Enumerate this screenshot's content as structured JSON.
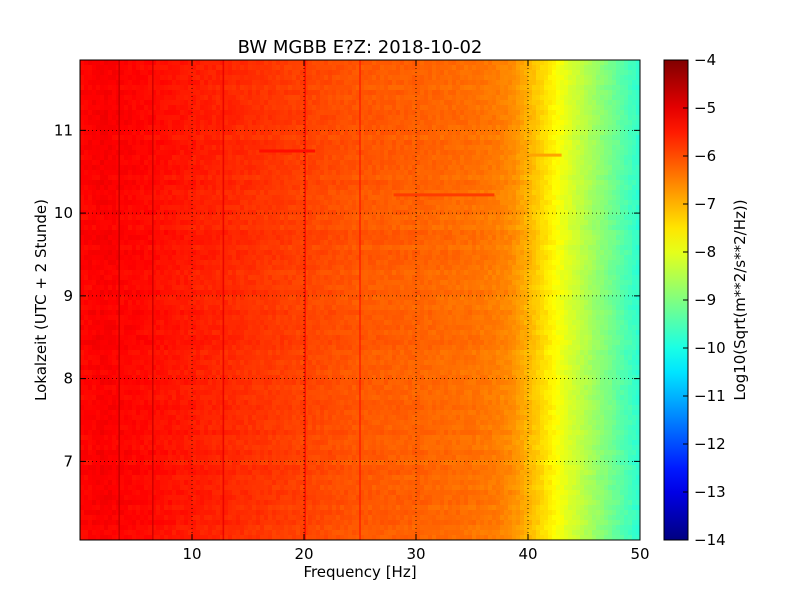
{
  "chart_data": {
    "type": "heatmap",
    "title": "BW MGBB E?Z: 2018-10-02",
    "xlabel": "Frequency [Hz]",
    "ylabel": "Lokalzeit (UTC + 2 Stunde)",
    "xlim": [
      0,
      50
    ],
    "ylim": [
      11.85,
      6.05
    ],
    "y_inverted": true,
    "x_ticks": [
      10,
      20,
      30,
      40,
      50
    ],
    "y_ticks": [
      7,
      8,
      9,
      10,
      11
    ],
    "grid": true,
    "colormap": "jet",
    "colorbar": {
      "label": "Log10(Sqrt(m**2/s**2/Hz))",
      "range": [
        -14,
        -4
      ],
      "ticks": [
        -4,
        -5,
        -6,
        -7,
        -8,
        -9,
        -10,
        -11,
        -12,
        -13,
        -14
      ]
    },
    "spectrum_profile": {
      "frequency_hz": [
        0,
        2,
        5,
        10,
        15,
        20,
        25,
        30,
        35,
        37,
        38.5,
        40,
        41.5,
        42.5,
        43.5,
        45,
        47,
        49,
        50
      ],
      "log10_psd": [
        -5.3,
        -5.2,
        -5.3,
        -5.5,
        -5.7,
        -5.9,
        -6.1,
        -6.2,
        -6.35,
        -6.45,
        -6.6,
        -7.0,
        -7.45,
        -7.75,
        -8.05,
        -8.45,
        -9.0,
        -9.55,
        -9.8
      ]
    },
    "vertical_lines_hz": [
      3.5,
      6.5,
      12.8,
      20.1,
      25.0
    ],
    "horizontal_features": [
      {
        "time": 10.22,
        "freq_range": [
          28,
          37
        ]
      },
      {
        "time": 10.75,
        "freq_range": [
          16,
          21
        ]
      },
      {
        "time": 10.7,
        "freq_range": [
          39,
          43
        ]
      }
    ]
  }
}
